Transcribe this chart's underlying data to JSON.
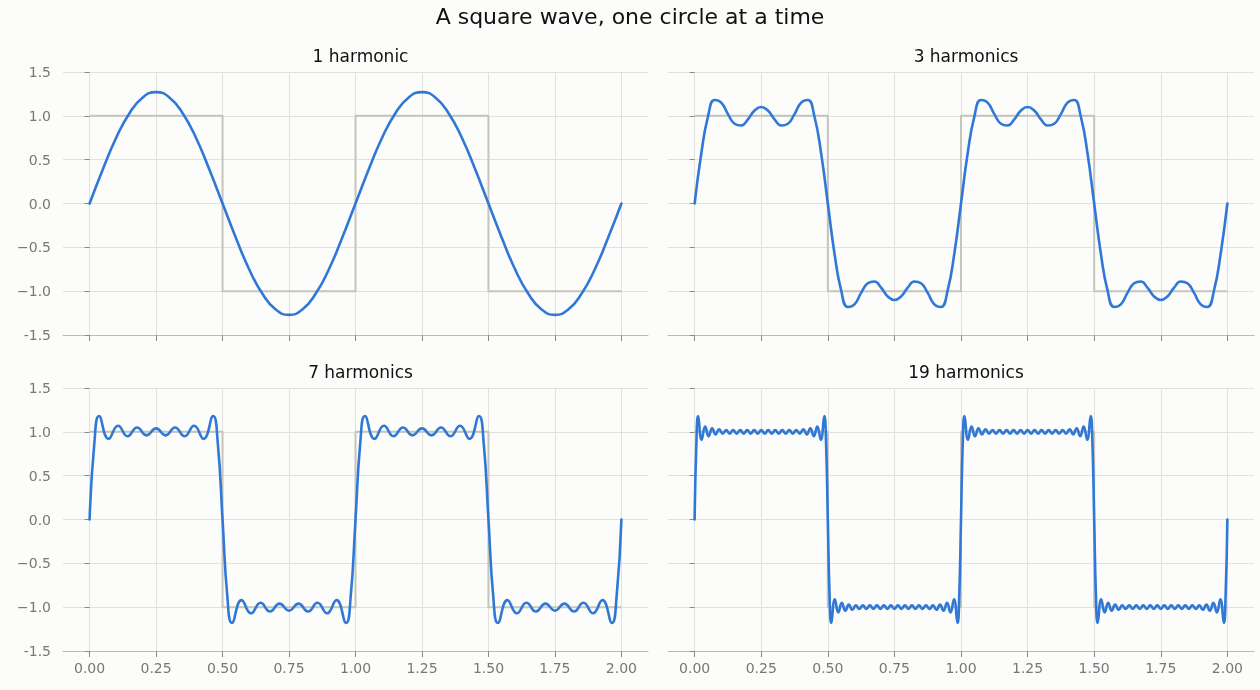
{
  "chart_data": [
    {
      "type": "line",
      "title": "1 harmonic",
      "annotations": [
        "A square wave, one circle at a time"
      ],
      "xlim": [
        -0.1,
        2.1
      ],
      "ylim": [
        -1.5,
        1.5
      ],
      "xticks": [
        0,
        0.25,
        0.5,
        0.75,
        1,
        1.25,
        1.5,
        1.75,
        2
      ],
      "yticks": [
        -1.5,
        {
          "value": -1,
          "label": "−1.0"
        },
        {
          "value": -0.5,
          "label": "−0.5"
        },
        {
          "value": 0,
          "label": "0.0"
        },
        {
          "value": 0.5,
          "label": "0.5"
        },
        {
          "value": 1,
          "label": "1.0"
        },
        1.5
      ],
      "grid": true,
      "marker": "none",
      "tick_labels": "y",
      "series": [
        {
          "type": "step",
          "color": "#c5c5bd",
          "x": [
            0,
            0.5,
            1,
            1.5,
            2
          ],
          "values": [
            1,
            -1,
            1,
            -1,
            -1
          ]
        },
        {
          "color": "#2f78d6",
          "x": [
            0,
            0.05,
            0.1,
            0.15,
            0.2,
            0.25,
            0.3,
            0.35,
            0.4,
            0.45,
            0.5,
            0.55,
            0.6,
            0.65,
            0.7,
            0.75,
            0.8,
            0.85,
            0.9,
            0.95,
            1,
            1.05,
            1.1,
            1.15,
            1.2,
            1.25,
            1.3,
            1.35,
            1.4,
            1.45,
            1.5,
            1.55,
            1.6,
            1.65,
            1.7,
            1.75,
            1.8,
            1.85,
            1.9,
            1.95,
            2
          ],
          "values": [
            0,
            0.39,
            0.75,
            1.03,
            1.21,
            1.27,
            1.21,
            1.03,
            0.75,
            0.39,
            0,
            -0.39,
            -0.75,
            -1.03,
            -1.21,
            -1.27,
            -1.21,
            -1.03,
            -0.75,
            -0.39,
            0,
            0.39,
            0.75,
            1.03,
            1.21,
            1.27,
            1.21,
            1.03,
            0.75,
            0.39,
            0,
            -0.39,
            -0.75,
            -1.03,
            -1.21,
            -1.27,
            -1.21,
            -1.03,
            -0.75,
            -0.39,
            0
          ]
        }
      ]
    },
    {
      "type": "line",
      "title": "3 harmonics",
      "xlim": [
        -0.1,
        2.1
      ],
      "ylim": [
        -1.5,
        1.5
      ],
      "xticks": [
        0,
        0.25,
        0.5,
        0.75,
        1,
        1.25,
        1.5,
        1.75,
        2
      ],
      "yticks": [
        -1.5,
        -1,
        -0.5,
        0,
        0.5,
        1,
        1.5
      ],
      "grid": true,
      "marker": "none",
      "tick_labels": false,
      "series": [
        {
          "type": "step",
          "color": "#c5c5bd",
          "x": [
            0,
            0.5,
            1,
            1.5,
            2
          ],
          "values": [
            1,
            -1,
            1,
            -1,
            -1
          ]
        },
        {
          "color": "#2f78d6",
          "x": [
            0,
            0.025,
            0.05,
            0.075,
            0.1,
            0.125,
            0.15,
            0.175,
            0.2,
            0.225,
            0.25,
            0.275,
            0.3,
            0.325,
            0.35,
            0.375,
            0.4,
            0.425,
            0.45,
            0.475,
            0.5,
            0.525,
            0.55,
            0.575,
            0.6,
            0.625,
            0.65,
            0.675,
            0.7,
            0.725,
            0.75,
            0.775,
            0.8,
            0.825,
            0.85,
            0.875,
            0.9,
            0.925,
            0.95,
            0.975,
            1,
            1.025,
            1.05,
            1.075,
            1.1,
            1.125,
            1.15,
            1.175,
            1.2,
            1.225,
            1.25,
            1.275,
            1.3,
            1.325,
            1.35,
            1.375,
            1.4,
            1.425,
            1.45,
            1.475,
            1.5,
            1.525,
            1.55,
            1.575,
            1.6,
            1.625,
            1.65,
            1.675,
            1.7,
            1.725,
            1.75,
            1.775,
            1.8,
            1.825,
            1.85,
            1.875,
            1.9,
            1.925,
            1.95,
            1.975,
            2
          ],
          "values": [
            0,
            0.57,
            0.99,
            1.18,
            1.15,
            1.02,
            0.91,
            0.89,
            0.96,
            1.06,
            1.1,
            1.06,
            0.96,
            0.89,
            0.91,
            1.02,
            1.15,
            1.18,
            0.99,
            0.57,
            0,
            -0.57,
            -0.99,
            -1.18,
            -1.15,
            -1.02,
            -0.91,
            -0.89,
            -0.96,
            -1.06,
            -1.1,
            -1.06,
            -0.96,
            -0.89,
            -0.91,
            -1.02,
            -1.15,
            -1.18,
            -0.99,
            -0.57,
            0,
            0.57,
            0.99,
            1.18,
            1.15,
            1.02,
            0.91,
            0.89,
            0.96,
            1.06,
            1.1,
            1.06,
            0.96,
            0.89,
            0.91,
            1.02,
            1.15,
            1.18,
            0.99,
            0.57,
            0,
            -0.57,
            -0.99,
            -1.18,
            -1.15,
            -1.02,
            -0.91,
            -0.89,
            -0.96,
            -1.06,
            -1.1,
            -1.06,
            -0.96,
            -0.89,
            -0.91,
            -1.02,
            -1.15,
            -1.18,
            -0.99,
            -0.57,
            0
          ]
        }
      ]
    },
    {
      "type": "line",
      "title": "7 harmonics",
      "xlim": [
        -0.1,
        2.1
      ],
      "ylim": [
        -1.5,
        1.5
      ],
      "xticks": [
        {
          "value": 0,
          "label": "0.00"
        },
        {
          "value": 0.25,
          "label": "0.25"
        },
        {
          "value": 0.5,
          "label": "0.50"
        },
        {
          "value": 0.75,
          "label": "0.75"
        },
        {
          "value": 1,
          "label": "1.00"
        },
        {
          "value": 1.25,
          "label": "1.25"
        },
        {
          "value": 1.5,
          "label": "1.50"
        },
        {
          "value": 1.75,
          "label": "1.75"
        },
        {
          "value": 2,
          "label": "2.00"
        }
      ],
      "yticks": [
        -1.5,
        {
          "value": -1,
          "label": "−1.0"
        },
        {
          "value": -0.5,
          "label": "−0.5"
        },
        {
          "value": 0,
          "label": "0.0"
        },
        {
          "value": 0.5,
          "label": "0.5"
        },
        {
          "value": 1,
          "label": "1.0"
        },
        1.5
      ],
      "grid": true,
      "marker": "none",
      "series": [
        {
          "type": "step",
          "color": "#c5c5bd",
          "x": [
            0,
            0.5,
            1,
            1.5,
            2
          ],
          "values": [
            1,
            -1,
            1,
            -1,
            -1
          ]
        },
        {
          "color": "#2f78d6",
          "x": [
            0,
            0.0179,
            0.0357,
            0.0714,
            0.1071,
            0.1429,
            0.1786,
            0.2143,
            0.25,
            0.2857,
            0.3214,
            0.3571,
            0.3929,
            0.4286,
            0.4643,
            0.4821,
            0.5,
            0.5179,
            0.5357,
            0.5714,
            0.6071,
            0.6429,
            0.6786,
            0.7143,
            0.75,
            0.7857,
            0.8214,
            0.8571,
            0.8929,
            0.9286,
            0.9643,
            0.9821,
            1,
            1.0179,
            1.0357,
            1.0714,
            1.1071,
            1.1429,
            1.1786,
            1.2143,
            1.25,
            1.2857,
            1.3214,
            1.3571,
            1.3929,
            1.4286,
            1.4643,
            1.4821,
            1.5,
            1.5179,
            1.5357,
            1.5714,
            1.6071,
            1.6429,
            1.6786,
            1.7143,
            1.75,
            1.7857,
            1.8214,
            1.8571,
            1.8929,
            1.9286,
            1.9643,
            1.9821,
            2
          ],
          "values": [
            0,
            0.87,
            1.18,
            0.92,
            1.07,
            0.95,
            1.05,
            0.96,
            1.04,
            0.96,
            1.05,
            0.95,
            1.07,
            0.92,
            1.18,
            0.87,
            0,
            -0.87,
            -1.18,
            -0.92,
            -1.07,
            -0.95,
            -1.05,
            -0.96,
            -1.04,
            -0.96,
            -1.05,
            -0.95,
            -1.07,
            -0.92,
            -1.18,
            -0.87,
            0,
            0.87,
            1.18,
            0.92,
            1.07,
            0.95,
            1.05,
            0.96,
            1.04,
            0.96,
            1.05,
            0.95,
            1.07,
            0.92,
            1.18,
            0.87,
            0,
            -0.87,
            -1.18,
            -0.92,
            -1.07,
            -0.95,
            -1.05,
            -0.96,
            -1.04,
            -0.96,
            -1.05,
            -0.95,
            -1.07,
            -0.92,
            -1.18,
            -0.87,
            0
          ]
        }
      ]
    },
    {
      "type": "line",
      "title": "19 harmonics",
      "xlim": [
        -0.1,
        2.1
      ],
      "ylim": [
        -1.5,
        1.5
      ],
      "xticks": [
        {
          "value": 0,
          "label": "0.00"
        },
        {
          "value": 0.25,
          "label": "0.25"
        },
        {
          "value": 0.5,
          "label": "0.50"
        },
        {
          "value": 0.75,
          "label": "0.75"
        },
        {
          "value": 1,
          "label": "1.00"
        },
        {
          "value": 1.25,
          "label": "1.25"
        },
        {
          "value": 1.5,
          "label": "1.50"
        },
        {
          "value": 1.75,
          "label": "1.75"
        },
        {
          "value": 2,
          "label": "2.00"
        }
      ],
      "yticks": [
        -1.5,
        -1,
        -0.5,
        0,
        0.5,
        1,
        1.5
      ],
      "grid": true,
      "marker": "none",
      "tick_labels": "x",
      "series": [
        {
          "type": "step",
          "color": "#c5c5bd",
          "x": [
            0,
            0.5,
            1,
            1.5,
            2
          ],
          "values": [
            1,
            -1,
            1,
            -1,
            -1
          ]
        },
        {
          "color": "#2f78d6",
          "x": [
            0,
            0.0066,
            0.0132,
            0.0263,
            0.0395,
            0.0526,
            0.0658,
            0.0789,
            0.0921,
            0.1053,
            0.1184,
            0.1316,
            0.1447,
            0.1579,
            0.1711,
            0.1842,
            0.1974,
            0.2105,
            0.2237,
            0.2368,
            0.25,
            0.2632,
            0.2763,
            0.2895,
            0.3026,
            0.3158,
            0.3289,
            0.3421,
            0.3553,
            0.3684,
            0.3816,
            0.3947,
            0.4079,
            0.4211,
            0.4342,
            0.4474,
            0.4605,
            0.4737,
            0.4868,
            0.4934,
            0.5,
            0.5066,
            0.5132,
            0.5263,
            0.5395,
            0.5526,
            0.5658,
            0.5789,
            0.5921,
            0.6053,
            0.6184,
            0.6316,
            0.6447,
            0.6579,
            0.6711,
            0.6842,
            0.6974,
            0.7105,
            0.7237,
            0.7368,
            0.75,
            0.7632,
            0.7763,
            0.7895,
            0.8026,
            0.8158,
            0.8289,
            0.8421,
            0.8553,
            0.8684,
            0.8816,
            0.8947,
            0.9079,
            0.9211,
            0.9342,
            0.9474,
            0.9605,
            0.9737,
            0.9868,
            0.9934,
            1,
            1.0066,
            1.0132,
            1.0263,
            1.0395,
            1.0526,
            1.0658,
            1.0789,
            1.0921,
            1.1053,
            1.1184,
            1.1316,
            1.1447,
            1.1579,
            1.1711,
            1.1842,
            1.1974,
            1.2105,
            1.2237,
            1.2368,
            1.25,
            1.2632,
            1.2763,
            1.2895,
            1.3026,
            1.3158,
            1.3289,
            1.3421,
            1.3553,
            1.3684,
            1.3816,
            1.3947,
            1.4079,
            1.4211,
            1.4342,
            1.4474,
            1.4605,
            1.4737,
            1.4868,
            1.4934,
            1.5,
            1.5066,
            1.5132,
            1.5263,
            1.5395,
            1.5526,
            1.5658,
            1.5789,
            1.5921,
            1.6053,
            1.6184,
            1.6316,
            1.6447,
            1.6579,
            1.6711,
            1.6842,
            1.6974,
            1.7105,
            1.7237,
            1.7368,
            1.75,
            1.7632,
            1.7763,
            1.7895,
            1.8026,
            1.8158,
            1.8289,
            1.8421,
            1.8553,
            1.8684,
            1.8816,
            1.8947,
            1.9079,
            1.9211,
            1.9342,
            1.9474,
            1.9605,
            1.9737,
            1.9868,
            1.9934,
            2
          ],
          "values": [
            0,
            0.87,
            1.18,
            0.91,
            1.06,
            0.95,
            1.04,
            0.97,
            1.03,
            0.98,
            1.02,
            0.98,
            1.02,
            0.98,
            1.02,
            0.98,
            1.02,
            0.98,
            1.02,
            0.98,
            1.02,
            0.98,
            1.02,
            0.98,
            1.02,
            0.98,
            1.02,
            0.98,
            1.02,
            0.98,
            1.02,
            0.98,
            1.03,
            0.97,
            1.04,
            0.95,
            1.06,
            0.91,
            1.18,
            0.87,
            0,
            -0.87,
            -1.18,
            -0.91,
            -1.06,
            -0.95,
            -1.04,
            -0.97,
            -1.03,
            -0.98,
            -1.02,
            -0.98,
            -1.02,
            -0.98,
            -1.02,
            -0.98,
            -1.02,
            -0.98,
            -1.02,
            -0.98,
            -1.02,
            -0.98,
            -1.02,
            -0.98,
            -1.02,
            -0.98,
            -1.02,
            -0.98,
            -1.02,
            -0.98,
            -1.02,
            -0.98,
            -1.03,
            -0.97,
            -1.04,
            -0.95,
            -1.06,
            -0.91,
            -1.18,
            -0.87,
            0,
            0.87,
            1.18,
            0.91,
            1.06,
            0.95,
            1.04,
            0.97,
            1.03,
            0.98,
            1.02,
            0.98,
            1.02,
            0.98,
            1.02,
            0.98,
            1.02,
            0.98,
            1.02,
            0.98,
            1.02,
            0.98,
            1.02,
            0.98,
            1.02,
            0.98,
            1.02,
            0.98,
            1.02,
            0.98,
            1.02,
            0.98,
            1.03,
            0.97,
            1.04,
            0.95,
            1.06,
            0.91,
            1.18,
            0.87,
            0,
            -0.87,
            -1.18,
            -0.91,
            -1.06,
            -0.95,
            -1.04,
            -0.97,
            -1.03,
            -0.98,
            -1.02,
            -0.98,
            -1.02,
            -0.98,
            -1.02,
            -0.98,
            -1.02,
            -0.98,
            -1.02,
            -0.98,
            -1.02,
            -0.98,
            -1.02,
            -0.98,
            -1.02,
            -0.98,
            -1.02,
            -0.98,
            -1.02,
            -0.98,
            -1.02,
            -0.98,
            -1.03,
            -0.97,
            -1.04,
            -0.95,
            -1.06,
            -0.91,
            -1.18,
            -0.87,
            0
          ]
        }
      ]
    }
  ]
}
